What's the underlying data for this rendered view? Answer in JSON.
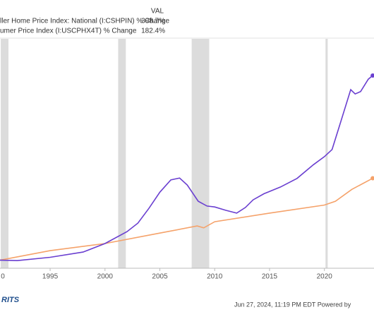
{
  "chart_data": {
    "type": "line",
    "legend_header": "VAL",
    "legend_values": [
      "398.7%",
      "182.4%"
    ],
    "footer": "Jun 27, 2024, 11:19 PM EDT Powered by",
    "logo": "RITS",
    "xlim": [
      1990.43,
      2024.52
    ],
    "xticks": [
      {
        "value": 1990,
        "label": "0"
      },
      1995,
      2000,
      2005,
      2010,
      2015,
      2020
    ],
    "ylim": [
      -7,
      476
    ],
    "recessions": [
      [
        1990.5,
        1991.2
      ],
      [
        2001.2,
        2001.9
      ],
      [
        2007.9,
        2009.5
      ],
      [
        2020.1,
        2020.3
      ]
    ],
    "series": [
      {
        "name": "ller Home Price Index: National (I:CSHPIN) % Change",
        "color": "#6a3fd0",
        "x": [
          1990.43,
          1992,
          1995,
          1998,
          2000,
          2002,
          2003,
          2004,
          2005,
          2006,
          2006.8,
          2007.5,
          2008.5,
          2009.3,
          2010,
          2011,
          2012,
          2012.8,
          2013.5,
          2014.5,
          2016,
          2017.5,
          2019,
          2020,
          2020.7,
          2021.5,
          2022.4,
          2022.8,
          2023.3,
          2024.0,
          2024.4
        ],
        "values": [
          10,
          9,
          16,
          27,
          45,
          70,
          88,
          119,
          153,
          179,
          183,
          168,
          134,
          124,
          122,
          115,
          109,
          121,
          137,
          150,
          164,
          182,
          211,
          228,
          243,
          302,
          369,
          360,
          365,
          391,
          398.7
        ]
      },
      {
        "name": "umer Price Index (I:USCPHX4T) % Change",
        "color": "#f5a26a",
        "x": [
          1990.43,
          1995,
          2000,
          2005,
          2008.4,
          2009,
          2010,
          2015,
          2020,
          2021,
          2022.5,
          2024.4
        ],
        "values": [
          10,
          30,
          45,
          67,
          82,
          78,
          91,
          109,
          126,
          134,
          159,
          182.4
        ]
      }
    ]
  }
}
